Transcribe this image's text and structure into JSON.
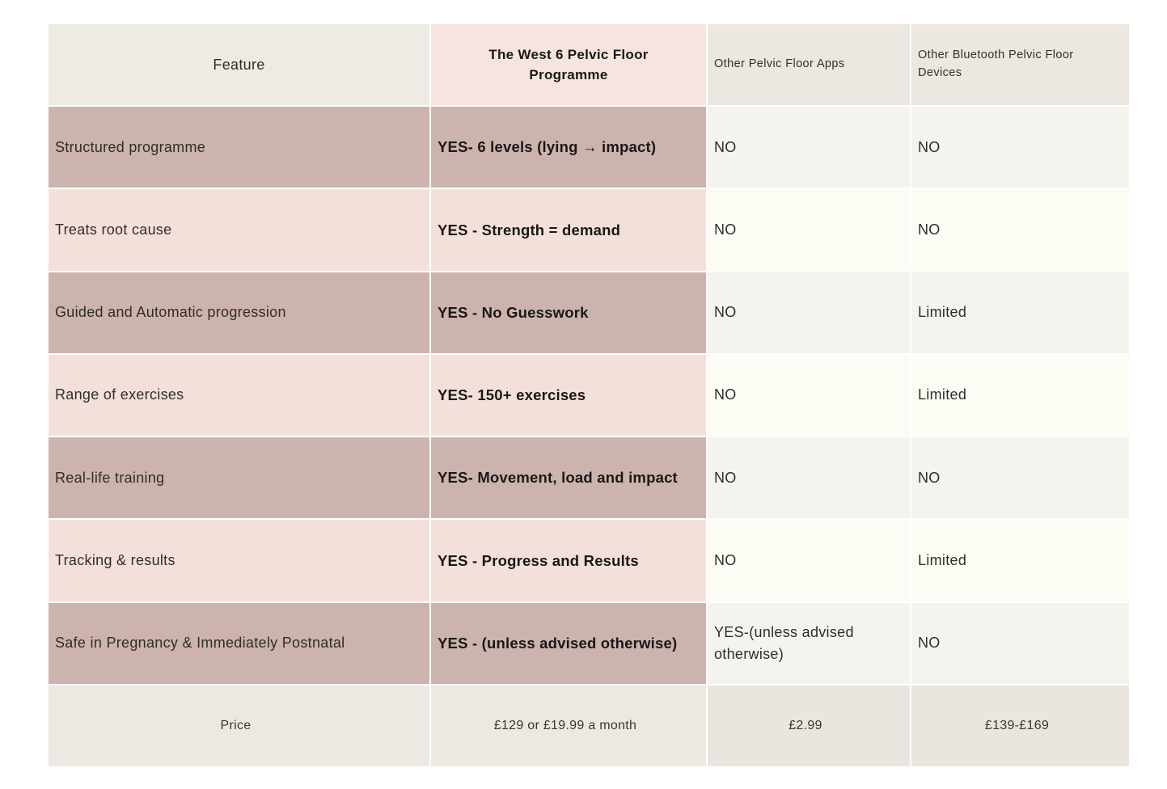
{
  "table": {
    "header": {
      "feature": "Feature",
      "west6": "The West 6 Pelvic Floor Programme",
      "apps": "Other Pelvic Floor Apps",
      "devices": "Other Bluetooth Pelvic Floor Devices"
    },
    "rows": [
      {
        "feature": "Structured programme",
        "west6": "YES- 6 levels (lying → impact)",
        "apps": "NO",
        "devices": "NO"
      },
      {
        "feature": "Treats root cause",
        "west6": "YES - Strength = demand",
        "apps": "NO",
        "devices": "NO"
      },
      {
        "feature": "Guided and Automatic progression",
        "west6": "YES - No Guesswork",
        "apps": "NO",
        "devices": "Limited"
      },
      {
        "feature": "Range of exercises",
        "west6": "YES- 150+ exercises",
        "apps": "NO",
        "devices": "Limited"
      },
      {
        "feature": "Real-life training",
        "west6": "YES- Movement, load and impact",
        "apps": "NO",
        "devices": "NO"
      },
      {
        "feature": "Tracking & results",
        "west6": "YES - Progress and Results",
        "apps": "NO",
        "devices": "Limited"
      },
      {
        "feature": "Safe in Pregnancy & Immediately Postnatal",
        "west6": "YES - (unless advised otherwise)",
        "apps": "YES-(unless advised otherwise)",
        "devices": "NO"
      }
    ],
    "price": {
      "feature": "Price",
      "west6": "£129 or £19.99 a month",
      "apps": "£2.99",
      "devices": "£139-£169"
    }
  },
  "colors": {
    "row_mauve": "#cdb3ad",
    "row_pink": "#f4e0db",
    "header_pink": "#f7e4e0",
    "header_beige": "#eeebe4",
    "other_cols_beige": "#ece8e1",
    "other_cols_light": "#f5f3ee",
    "other_cols_lighter": "#fcfbf4",
    "price_beige": "#ede9e2",
    "text_dark": "#191817",
    "text_regular": "#2f2d2a",
    "page_background": "#ffffff"
  },
  "chart_data": {
    "type": "table",
    "title": "Pelvic floor programme comparison",
    "columns": [
      "Feature",
      "The West 6 Pelvic Floor Programme",
      "Other Pelvic Floor Apps",
      "Other Bluetooth Pelvic Floor Devices"
    ],
    "rows": [
      [
        "Structured programme",
        "YES- 6 levels (lying → impact)",
        "NO",
        "NO"
      ],
      [
        "Treats root cause",
        "YES - Strength = demand",
        "NO",
        "NO"
      ],
      [
        "Guided and Automatic progression",
        "YES - No Guesswork",
        "NO",
        "Limited"
      ],
      [
        "Range of exercises",
        "YES- 150+ exercises",
        "NO",
        "Limited"
      ],
      [
        "Real-life training",
        "YES- Movement, load and impact",
        "NO",
        "NO"
      ],
      [
        "Tracking & results",
        "YES - Progress and Results",
        "NO",
        "Limited"
      ],
      [
        "Safe in Pregnancy & Immediately Postnatal",
        "YES - (unless advised otherwise)",
        "YES-(unless advised otherwise)",
        "NO"
      ],
      [
        "Price",
        "£129 or £19.99 a month",
        "£2.99",
        "£139-£169"
      ]
    ]
  }
}
